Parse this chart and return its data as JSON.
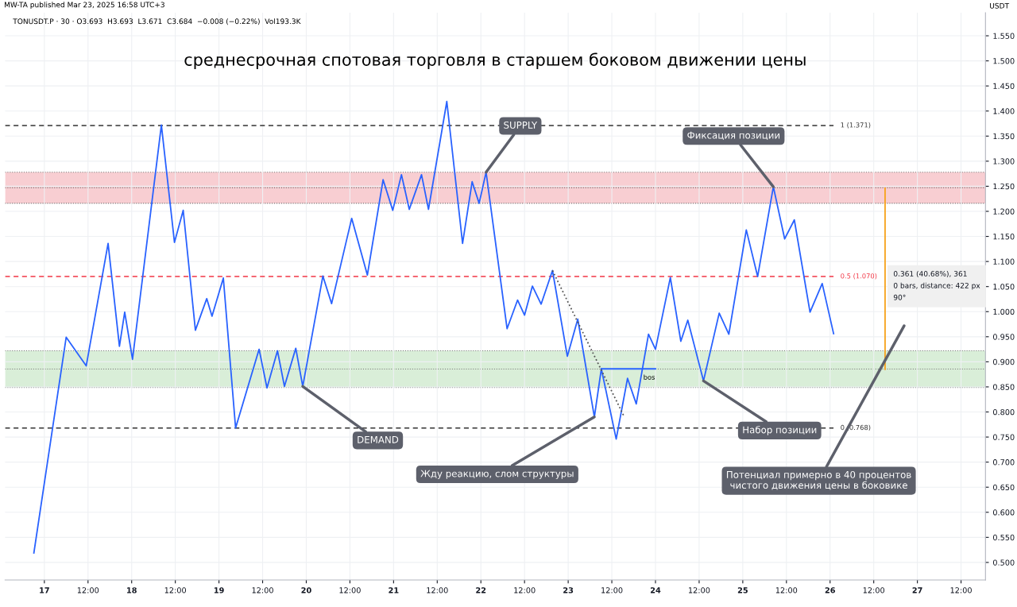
{
  "chart_data": {
    "type": "line",
    "title": "среднесрочная спотовая торговля в старшем боковом движении цены",
    "subtitle": "TONUSDT.P · 30 · O3.693  H3.693  L3.671  C3.684  −0.008 (−0.22%)  Vol193.3K",
    "ylabel": "USDT",
    "series": [
      {
        "color": "#2962ff",
        "x": [
          "2025-03-16T21:07",
          "2025-03-17T06:00",
          "2025-03-17T11:31",
          "2025-03-17T17:31",
          "2025-03-17T20:38",
          "2025-03-17T22:05",
          "2025-03-18T00:14",
          "2025-03-18T08:10",
          "2025-03-18T11:46",
          "2025-03-18T14:10",
          "2025-03-18T17:31",
          "2025-03-18T20:38",
          "2025-03-18T22:05",
          "2025-03-19T01:12",
          "2025-03-19T04:34",
          "2025-03-19T11:02",
          "2025-03-19T13:12",
          "2025-03-19T16:05",
          "2025-03-19T18:00",
          "2025-03-19T21:07",
          "2025-03-19T23:02",
          "2025-03-20T04:34",
          "2025-03-20T06:58",
          "2025-03-20T12:29",
          "2025-03-20T16:48",
          "2025-03-20T21:07",
          "2025-03-20T23:46",
          "2025-03-21T02:10",
          "2025-03-21T04:19",
          "2025-03-21T07:41",
          "2025-03-21T09:36",
          "2025-03-21T14:38",
          "2025-03-21T18:58",
          "2025-03-21T21:36",
          "2025-03-21T23:31",
          "2025-03-22T01:26",
          "2025-03-22T07:12",
          "2025-03-22T10:05",
          "2025-03-22T12:00",
          "2025-03-22T14:10",
          "2025-03-22T16:34",
          "2025-03-22T19:41",
          "2025-03-22T23:46",
          "2025-03-23T02:38",
          "2025-03-23T07:12",
          "2025-03-23T09:07",
          "2025-03-23T13:12",
          "2025-03-23T16:19",
          "2025-03-23T18:43",
          "2025-03-23T22:05",
          "2025-03-24T00:00",
          "2025-03-24T04:05",
          "2025-03-24T06:58",
          "2025-03-24T08:53",
          "2025-03-24T13:12",
          "2025-03-24T17:31",
          "2025-03-24T20:10",
          "2025-03-25T00:58",
          "2025-03-25T04:05",
          "2025-03-25T08:24",
          "2025-03-25T11:31",
          "2025-03-25T14:10",
          "2025-03-25T18:29",
          "2025-03-25T21:50",
          "2025-03-26T00:58"
        ],
        "values": [
          0.519,
          0.949,
          0.892,
          1.136,
          0.931,
          0.999,
          0.905,
          1.372,
          1.138,
          1.202,
          0.963,
          1.026,
          0.991,
          1.067,
          0.768,
          0.925,
          0.848,
          0.922,
          0.851,
          0.927,
          0.851,
          1.071,
          1.016,
          1.186,
          1.073,
          1.263,
          1.202,
          1.273,
          1.204,
          1.273,
          1.204,
          1.419,
          1.136,
          1.259,
          1.216,
          1.278,
          0.966,
          1.023,
          0.993,
          1.051,
          1.015,
          1.082,
          0.911,
          0.985,
          0.79,
          0.886,
          0.746,
          0.867,
          0.816,
          0.955,
          0.925,
          1.068,
          0.941,
          0.983,
          0.862,
          0.997,
          0.955,
          1.163,
          1.07,
          1.249,
          1.145,
          1.183,
          0.999,
          1.056,
          0.956
        ]
      },
      {
        "color": "#2962ff",
        "x": [
          "2025-03-23T09:07",
          "2025-03-24T00:00"
        ],
        "values": [
          0.886,
          0.886
        ]
      },
      {
        "color": "#555555",
        "line_style": "dotted",
        "x": [
          "2025-03-22T19:41",
          "2025-03-23T15:22"
        ],
        "values": [
          1.082,
          0.791
        ]
      },
      {
        "color": "#f7a21b",
        "x": [
          "2025-03-26T15:07",
          "2025-03-26T15:07"
        ],
        "values": [
          0.885,
          1.246
        ]
      }
    ],
    "xlim": [
      "2025-03-16T13:12",
      "2025-03-27T18:43"
    ],
    "xticks": [
      {
        "value": "2025-03-17",
        "label": "17"
      },
      {
        "value": "2025-03-17T12:00",
        "label": "12:00"
      },
      {
        "value": "2025-03-18",
        "label": "18"
      },
      {
        "value": "2025-03-18T12:00",
        "label": "12:00"
      },
      {
        "value": "2025-03-19",
        "label": "19"
      },
      {
        "value": "2025-03-19T12:00",
        "label": "12:00"
      },
      {
        "value": "2025-03-20",
        "label": "20"
      },
      {
        "value": "2025-03-20T12:00",
        "label": "12:00"
      },
      {
        "value": "2025-03-21",
        "label": "21"
      },
      {
        "value": "2025-03-21T12:00",
        "label": "12:00"
      },
      {
        "value": "2025-03-22",
        "label": "22"
      },
      {
        "value": "2025-03-22T12:00",
        "label": "12:00"
      },
      {
        "value": "2025-03-23",
        "label": "23"
      },
      {
        "value": "2025-03-23T12:00",
        "label": "12:00"
      },
      {
        "value": "2025-03-24",
        "label": "24"
      },
      {
        "value": "2025-03-24T12:00",
        "label": "12:00"
      },
      {
        "value": "2025-03-25",
        "label": "25"
      },
      {
        "value": "2025-03-25T12:00",
        "label": "12:00"
      },
      {
        "value": "2025-03-26",
        "label": "26"
      },
      {
        "value": "2025-03-26T12:00",
        "label": "12:00"
      },
      {
        "value": "2025-03-27",
        "label": "27"
      },
      {
        "value": "2025-03-27T12:00",
        "label": "12:00"
      }
    ],
    "ylim": [
      0.465,
      1.596
    ],
    "yticks": [
      {
        "value": 0.5,
        "label": "0.500"
      },
      {
        "value": 0.55,
        "label": "0.550"
      },
      {
        "value": 0.6,
        "label": "0.600"
      },
      {
        "value": 0.65,
        "label": "0.650"
      },
      {
        "value": 0.7,
        "label": "0.700"
      },
      {
        "value": 0.75,
        "label": "0.750"
      },
      {
        "value": 0.8,
        "label": "0.800"
      },
      {
        "value": 0.85,
        "label": "0.850"
      },
      {
        "value": 0.9,
        "label": "0.900"
      },
      {
        "value": 0.95,
        "label": "0.950"
      },
      {
        "value": 1.0,
        "label": "1.000"
      },
      {
        "value": 1.05,
        "label": "1.050"
      },
      {
        "value": 1.1,
        "label": "1.100"
      },
      {
        "value": 1.15,
        "label": "1.150"
      },
      {
        "value": 1.2,
        "label": "1.200"
      },
      {
        "value": 1.25,
        "label": "1.250"
      },
      {
        "value": 1.3,
        "label": "1.300"
      },
      {
        "value": 1.35,
        "label": "1.350"
      },
      {
        "value": 1.4,
        "label": "1.400"
      },
      {
        "value": 1.45,
        "label": "1.450"
      },
      {
        "value": 1.5,
        "label": "1.500"
      },
      {
        "value": 1.55,
        "label": "1.550"
      }
    ],
    "ref_lines": [
      {
        "axis": "y",
        "value": 1.371,
        "label": "1 (1.371)",
        "color": "#333333",
        "line_style": "dashed"
      },
      {
        "axis": "y",
        "value": 1.07,
        "label": "0.5 (1.070)",
        "color": "#f23645",
        "line_style": "dashed"
      },
      {
        "axis": "y",
        "value": 0.768,
        "label": "0 (0.768)",
        "color": "#333333",
        "line_style": "dashed"
      }
    ],
    "bands": [
      {
        "axis": "y",
        "from": 1.216,
        "to": 1.278,
        "color": "#f7c9cd"
      },
      {
        "axis": "y",
        "from": 0.849,
        "to": 0.922,
        "color": "#d5ecd4"
      }
    ],
    "annotations": [
      "MW-TA published Mar 23, 2025 16:58 UTC+3",
      {
        "text": "SUPPLY",
        "x": "2025-03-22T01:26",
        "y": 1.278
      },
      {
        "text": "DEMAND",
        "x": "2025-03-19T23:02",
        "y": 0.851
      },
      {
        "text": "Жду реакцию, слом структуры",
        "x": "2025-03-23T07:12",
        "y": 0.79
      },
      {
        "text": "Фиксация позиции",
        "x": "2025-03-25T08:24",
        "y": 1.249
      },
      {
        "text": "Набор позиции",
        "x": "2025-03-24T13:12",
        "y": 0.862
      },
      "Потенциал примерно в 40 процентов\nчистого движения цены в боковике",
      "bos",
      "0.361 (40.68%), 361",
      "0 bars, distance: 422 px",
      "90°"
    ],
    "grid": true,
    "legend": false
  }
}
